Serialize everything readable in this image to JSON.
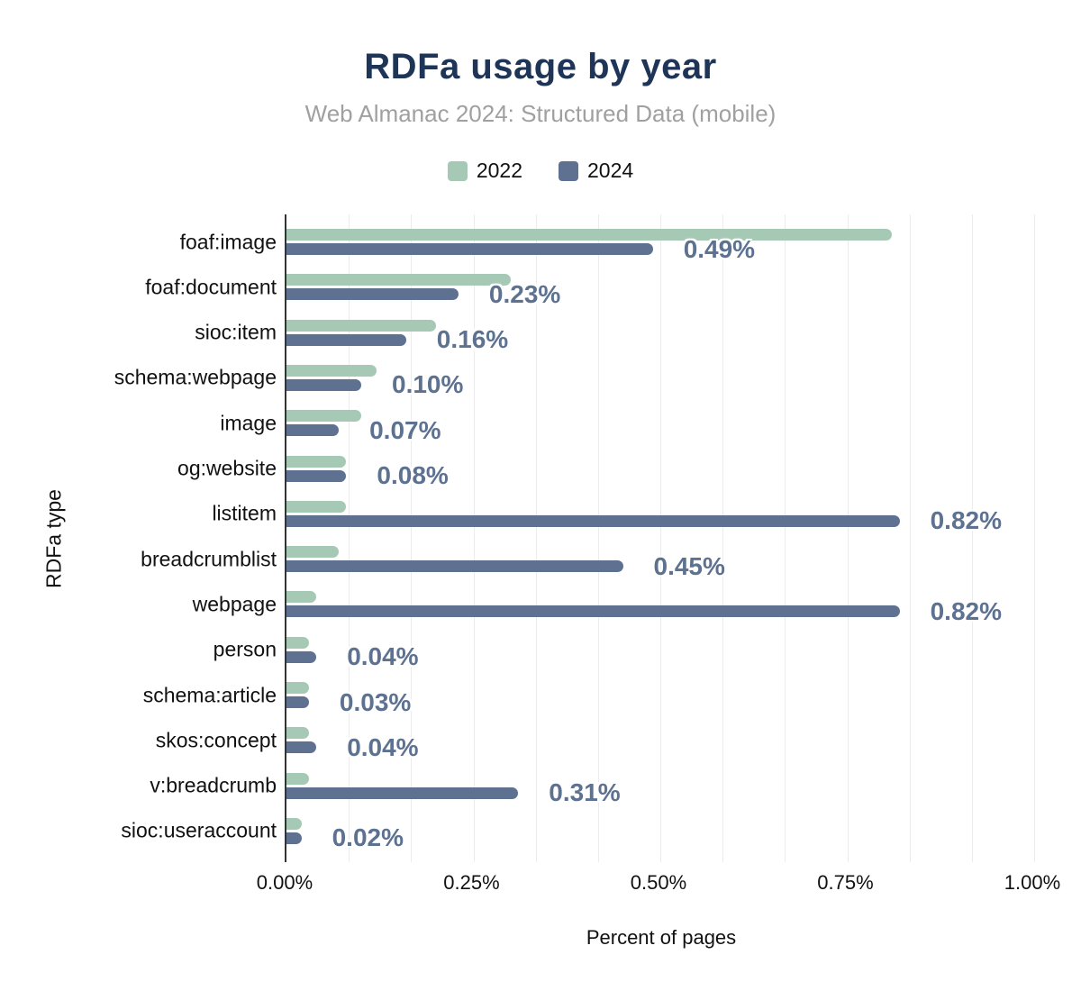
{
  "header": {
    "title": "RDFa usage by year",
    "subtitle": "Web Almanac 2024: Structured Data (mobile)"
  },
  "legend": {
    "items": [
      {
        "label": "2022",
        "color": "#a6c9b5"
      },
      {
        "label": "2024",
        "color": "#5e7190"
      }
    ]
  },
  "axes": {
    "x_title": "Percent of pages",
    "y_title": "RDFa type",
    "x_ticks": [
      "0.00%",
      "0.25%",
      "0.50%",
      "0.75%",
      "1.00%"
    ],
    "x_tick_values": [
      0,
      0.25,
      0.5,
      0.75,
      1.0
    ],
    "x_max": 1.0,
    "minor_divisions": 12
  },
  "colors": {
    "title": "#1e3557",
    "subtitle": "#a0a0a0",
    "series_2022": "#a6c9b5",
    "series_2024": "#5e7190",
    "data_label": "#5d7190",
    "axis_line": "#333333",
    "gridline": "#ececec",
    "text": "#111111"
  },
  "chart_data": {
    "type": "bar",
    "orientation": "horizontal",
    "title": "RDFa usage by year",
    "subtitle": "Web Almanac 2024: Structured Data (mobile)",
    "xlabel": "Percent of pages",
    "ylabel": "RDFa type",
    "xlim": [
      0,
      1.0
    ],
    "grid": true,
    "legend_position": "top",
    "categories": [
      "foaf:image",
      "foaf:document",
      "sioc:item",
      "schema:webpage",
      "image",
      "og:website",
      "listitem",
      "breadcrumblist",
      "webpage",
      "person",
      "schema:article",
      "skos:concept",
      "v:breadcrumb",
      "sioc:useraccount"
    ],
    "series": [
      {
        "name": "2022",
        "color": "#a6c9b5",
        "values": [
          0.81,
          0.3,
          0.2,
          0.12,
          0.1,
          0.08,
          0.08,
          0.07,
          0.04,
          0.03,
          0.03,
          0.03,
          0.03,
          0.02
        ]
      },
      {
        "name": "2024",
        "color": "#5e7190",
        "values": [
          0.49,
          0.23,
          0.16,
          0.1,
          0.07,
          0.08,
          0.82,
          0.45,
          0.82,
          0.04,
          0.03,
          0.04,
          0.31,
          0.02
        ],
        "data_labels": [
          "0.49%",
          "0.23%",
          "0.16%",
          "0.10%",
          "0.07%",
          "0.08%",
          "0.82%",
          "0.45%",
          "0.82%",
          "0.04%",
          "0.03%",
          "0.04%",
          "0.31%",
          "0.02%"
        ]
      }
    ]
  }
}
